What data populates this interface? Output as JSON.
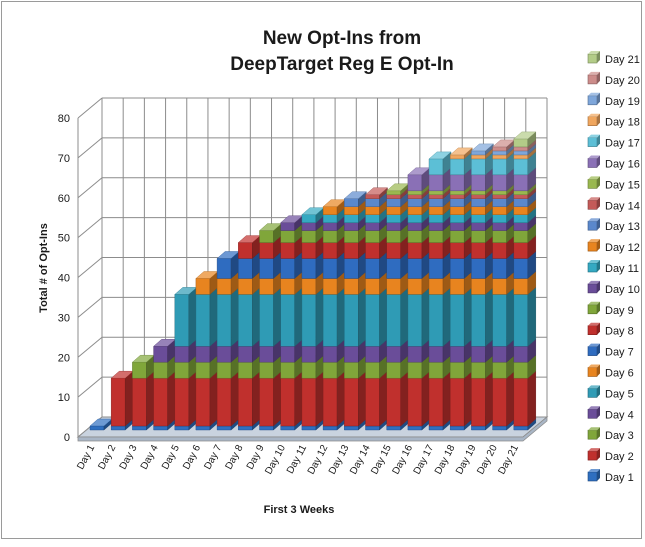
{
  "chart_data": {
    "type": "bar",
    "subtype": "stacked-3d-column",
    "title_lines": [
      "New Opt-Ins from",
      "DeepTarget Reg E Opt-In"
    ],
    "xlabel": "First 3 Weeks",
    "ylabel": "Total # of Opt-Ins",
    "ylim": [
      0,
      80
    ],
    "yticks": [
      0,
      10,
      20,
      30,
      40,
      50,
      60,
      70,
      80
    ],
    "grid": true,
    "legend_position": "right",
    "categories": [
      "Day 1",
      "Day 2",
      "Day 3",
      "Day 4",
      "Day 5",
      "Day 6",
      "Day 7",
      "Day 8",
      "Day 9",
      "Day 10",
      "Day 11",
      "Day 12",
      "Day 13",
      "Day 14",
      "Day 15",
      "Day 16",
      "Day 17",
      "Day 18",
      "Day 19",
      "Day 20",
      "Day 21"
    ],
    "series": [
      {
        "name": "Day 1",
        "color": "#2e6fc0",
        "values": [
          1,
          1,
          1,
          1,
          1,
          1,
          1,
          1,
          1,
          1,
          1,
          1,
          1,
          1,
          1,
          1,
          1,
          1,
          1,
          1,
          1
        ]
      },
      {
        "name": "Day 2",
        "color": "#c0302d",
        "values": [
          0,
          12,
          12,
          12,
          12,
          12,
          12,
          12,
          12,
          12,
          12,
          12,
          12,
          12,
          12,
          12,
          12,
          12,
          12,
          12,
          12
        ]
      },
      {
        "name": "Day 3",
        "color": "#80a63a",
        "values": [
          0,
          0,
          4,
          4,
          4,
          4,
          4,
          4,
          4,
          4,
          4,
          4,
          4,
          4,
          4,
          4,
          4,
          4,
          4,
          4,
          4
        ]
      },
      {
        "name": "Day 4",
        "color": "#6a4d99",
        "values": [
          0,
          0,
          0,
          4,
          4,
          4,
          4,
          4,
          4,
          4,
          4,
          4,
          4,
          4,
          4,
          4,
          4,
          4,
          4,
          4,
          4
        ]
      },
      {
        "name": "Day 5",
        "color": "#2f9bb5",
        "values": [
          0,
          0,
          0,
          0,
          13,
          13,
          13,
          13,
          13,
          13,
          13,
          13,
          13,
          13,
          13,
          13,
          13,
          13,
          13,
          13,
          13
        ]
      },
      {
        "name": "Day 6",
        "color": "#e8841f",
        "values": [
          0,
          0,
          0,
          0,
          0,
          4,
          4,
          4,
          4,
          4,
          4,
          4,
          4,
          4,
          4,
          4,
          4,
          4,
          4,
          4,
          4
        ]
      },
      {
        "name": "Day 7",
        "color": "#2f6cc0",
        "values": [
          0,
          0,
          0,
          0,
          0,
          0,
          5,
          5,
          5,
          5,
          5,
          5,
          5,
          5,
          5,
          5,
          5,
          5,
          5,
          5,
          5
        ]
      },
      {
        "name": "Day 8",
        "color": "#c0302d",
        "values": [
          0,
          0,
          0,
          0,
          0,
          0,
          0,
          4,
          4,
          4,
          4,
          4,
          4,
          4,
          4,
          4,
          4,
          4,
          4,
          4,
          4
        ]
      },
      {
        "name": "Day 9",
        "color": "#80a63a",
        "values": [
          0,
          0,
          0,
          0,
          0,
          0,
          0,
          0,
          3,
          3,
          3,
          3,
          3,
          3,
          3,
          3,
          3,
          3,
          3,
          3,
          3
        ]
      },
      {
        "name": "Day 10",
        "color": "#6a4d99",
        "values": [
          0,
          0,
          0,
          0,
          0,
          0,
          0,
          0,
          0,
          2,
          2,
          2,
          2,
          2,
          2,
          2,
          2,
          2,
          2,
          2,
          2
        ]
      },
      {
        "name": "Day 11",
        "color": "#34a9c2",
        "values": [
          0,
          0,
          0,
          0,
          0,
          0,
          0,
          0,
          0,
          0,
          2,
          2,
          2,
          2,
          2,
          2,
          2,
          2,
          2,
          2,
          2
        ]
      },
      {
        "name": "Day 12",
        "color": "#e8841f",
        "values": [
          0,
          0,
          0,
          0,
          0,
          0,
          0,
          0,
          0,
          0,
          0,
          2,
          2,
          2,
          2,
          2,
          2,
          2,
          2,
          2,
          2
        ]
      },
      {
        "name": "Day 13",
        "color": "#5a88cc",
        "values": [
          0,
          0,
          0,
          0,
          0,
          0,
          0,
          0,
          0,
          0,
          0,
          0,
          2,
          2,
          2,
          2,
          2,
          2,
          2,
          2,
          2
        ]
      },
      {
        "name": "Day 14",
        "color": "#c45a58",
        "values": [
          0,
          0,
          0,
          0,
          0,
          0,
          0,
          0,
          0,
          0,
          0,
          0,
          0,
          1,
          1,
          1,
          1,
          1,
          1,
          1,
          1
        ]
      },
      {
        "name": "Day 15",
        "color": "#9ab84f",
        "values": [
          0,
          0,
          0,
          0,
          0,
          0,
          0,
          0,
          0,
          0,
          0,
          0,
          0,
          0,
          1,
          1,
          1,
          1,
          1,
          1,
          1
        ]
      },
      {
        "name": "Day 16",
        "color": "#8a70b6",
        "values": [
          0,
          0,
          0,
          0,
          0,
          0,
          0,
          0,
          0,
          0,
          0,
          0,
          0,
          0,
          0,
          4,
          4,
          4,
          4,
          4,
          4
        ]
      },
      {
        "name": "Day 17",
        "color": "#5cbfd6",
        "values": [
          0,
          0,
          0,
          0,
          0,
          0,
          0,
          0,
          0,
          0,
          0,
          0,
          0,
          0,
          0,
          0,
          4,
          4,
          4,
          4,
          4
        ]
      },
      {
        "name": "Day 18",
        "color": "#f0a65e",
        "values": [
          0,
          0,
          0,
          0,
          0,
          0,
          0,
          0,
          0,
          0,
          0,
          0,
          0,
          0,
          0,
          0,
          0,
          1,
          1,
          1,
          1
        ]
      },
      {
        "name": "Day 19",
        "color": "#7ea6da",
        "values": [
          0,
          0,
          0,
          0,
          0,
          0,
          0,
          0,
          0,
          0,
          0,
          0,
          0,
          0,
          0,
          0,
          0,
          0,
          1,
          1,
          1
        ]
      },
      {
        "name": "Day 20",
        "color": "#cc8c8a",
        "values": [
          0,
          0,
          0,
          0,
          0,
          0,
          0,
          0,
          0,
          0,
          0,
          0,
          0,
          0,
          0,
          0,
          0,
          0,
          0,
          1,
          1
        ]
      },
      {
        "name": "Day 21",
        "color": "#b3cc88",
        "values": [
          0,
          0,
          0,
          0,
          0,
          0,
          0,
          0,
          0,
          0,
          0,
          0,
          0,
          0,
          0,
          0,
          0,
          0,
          0,
          0,
          2
        ]
      }
    ]
  }
}
